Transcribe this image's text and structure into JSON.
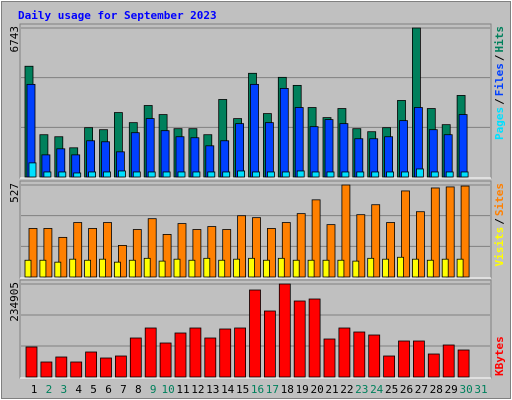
{
  "title": "Daily usage for September 2023",
  "legend_separator": "/",
  "chart_data": [
    {
      "type": "bar",
      "ylim": [
        0,
        6743
      ],
      "yticks": [
        6743
      ],
      "grid": true,
      "series": [
        {
          "name": "Hits",
          "color": "#00805c",
          "values": [
            5012,
            1914,
            1822,
            1321,
            2232,
            2141,
            2916,
            2460,
            3235,
            2825,
            2187,
            2187,
            1914,
            3508,
            2643,
            4693,
            2870,
            4510,
            4146,
            3144,
            2688,
            3098,
            2187,
            2050,
            2232,
            3463,
            6743,
            3098,
            2369,
            3690,
            null
          ]
        },
        {
          "name": "Files",
          "color": "#0040ff",
          "values": [
            4192,
            1002,
            1276,
            1002,
            1640,
            1594,
            1139,
            2005,
            2643,
            2096,
            1822,
            1777,
            1412,
            1640,
            2415,
            4192,
            2460,
            4009,
            3144,
            2278,
            2597,
            2415,
            1731,
            1731,
            1822,
            2551,
            3144,
            2141,
            1914,
            2825,
            null
          ]
        },
        {
          "name": "Pages",
          "color": "#00e0ff",
          "values": [
            638,
            228,
            228,
            182,
            228,
            228,
            273,
            228,
            228,
            228,
            228,
            228,
            228,
            228,
            273,
            228,
            228,
            228,
            273,
            228,
            228,
            228,
            228,
            228,
            228,
            228,
            364,
            228,
            228,
            228,
            null
          ]
        }
      ]
    },
    {
      "type": "bar",
      "ylim": [
        0,
        527
      ],
      "yticks": [
        527
      ],
      "grid": true,
      "series": [
        {
          "name": "Sites",
          "color": "#ff8000",
          "values": [
            278,
            278,
            227,
            312,
            278,
            312,
            181,
            272,
            334,
            244,
            306,
            272,
            289,
            272,
            351,
            340,
            278,
            312,
            363,
            442,
            300,
            527,
            357,
            414,
            312,
            493,
            374,
            510,
            516,
            521,
            null
          ]
        },
        {
          "name": "Visits",
          "color": "#ffff00",
          "values": [
            96,
            96,
            85,
            102,
            96,
            102,
            85,
            96,
            107,
            91,
            102,
            96,
            107,
            96,
            102,
            107,
            96,
            107,
            96,
            96,
            96,
            96,
            91,
            107,
            102,
            113,
            102,
            96,
            102,
            102,
            null
          ]
        }
      ]
    },
    {
      "type": "bar",
      "ylim": [
        0,
        234905
      ],
      "yticks": [
        234905
      ],
      "grid": true,
      "categories": [
        "1",
        "2",
        "3",
        "4",
        "5",
        "6",
        "7",
        "8",
        "9",
        "10",
        "11",
        "12",
        "13",
        "14",
        "15",
        "16",
        "17",
        "18",
        "19",
        "20",
        "21",
        "22",
        "23",
        "24",
        "25",
        "26",
        "27",
        "28",
        "29",
        "30",
        "31"
      ],
      "category_colors": [
        "#000000",
        "#00805c",
        "#00805c",
        "#000000",
        "#000000",
        "#000000",
        "#000000",
        "#000000",
        "#00805c",
        "#00805c",
        "#000000",
        "#000000",
        "#000000",
        "#000000",
        "#000000",
        "#00805c",
        "#00805c",
        "#000000",
        "#000000",
        "#000000",
        "#000000",
        "#000000",
        "#00805c",
        "#00805c",
        "#000000",
        "#000000",
        "#000000",
        "#000000",
        "#000000",
        "#00805c",
        "#00805c"
      ],
      "series": [
        {
          "name": "KBytes",
          "color": "#ff0000",
          "values": [
            75776,
            37888,
            50517,
            37888,
            63146,
            47991,
            53043,
            98508,
            123767,
            85879,
            111138,
            123767,
            98508,
            121241,
            123767,
            219750,
            166706,
            234905,
            191965,
            197016,
            95982,
            123767,
            113664,
            106086,
            53043,
            90930,
            90930,
            58095,
            80827,
            68198,
            null
          ]
        }
      ]
    }
  ]
}
